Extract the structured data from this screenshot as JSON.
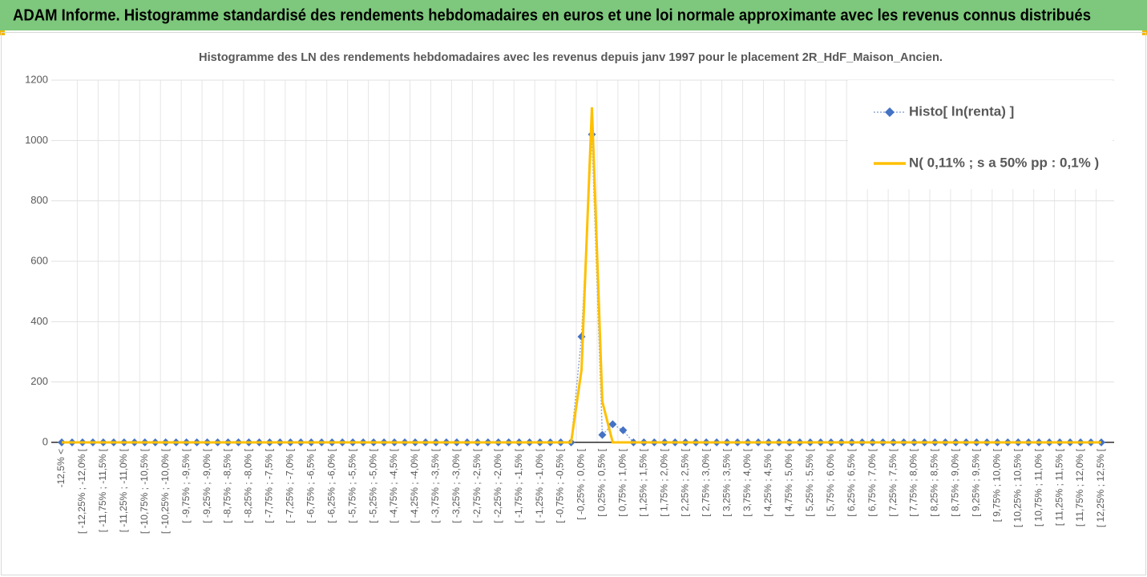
{
  "chart_data": {
    "type": "line",
    "title": "ADAM Informe. Histogramme standardisé des rendements hebdomadaires en euros et une loi normale approximante avec les revenus connus distribués",
    "subtitle": "Histogramme  des LN des rendements hebdomadaires avec les revenus depuis janv 1997 pour le placement 2R_HdF_Maison_Ancien.",
    "categories": [
      "-12,5% <",
      null,
      "[ -12,25% ; -12,0% [",
      null,
      "[ -11,75% ; -11,5% [",
      null,
      "[ -11,25% ; -11,0% [",
      null,
      "[ -10,75% ; -10,5% [",
      null,
      "[ -10,25% ; -10,0% [",
      null,
      "[ -9,75% ; -9,5% [",
      null,
      "[ -9,25% ; -9,0% [",
      null,
      "[ -8,75% ; -8,5% [",
      null,
      "[ -8,25% ; -8,0% [",
      null,
      "[ -7,75% ; -7,5% [",
      null,
      "[ -7,25% ; -7,0% [",
      null,
      "[ -6,75% ; -6,5% [",
      null,
      "[ -6,25% ; -6,0% [",
      null,
      "[ -5,75% ; -5,5% [",
      null,
      "[ -5,25% ; -5,0% [",
      null,
      "[ -4,75% ; -4,5% [",
      null,
      "[ -4,25% ; -4,0% [",
      null,
      "[ -3,75% ; -3,5% [",
      null,
      "[ -3,25% ; -3,0% [",
      null,
      "[ -2,75% ; -2,5% [",
      null,
      "[ -2,25% ; -2,0% [",
      null,
      "[ -1,75% ; -1,5% [",
      null,
      "[ -1,25% ; -1,0% [",
      null,
      "[ -0,75% ; -0,5% [",
      null,
      "[ -0,25% ; 0,0% [",
      null,
      "[ 0,25% ; 0,5% [",
      null,
      "[ 0,75% ; 1,0% [",
      null,
      "[ 1,25% ; 1,5% [",
      null,
      "[ 1,75% ; 2,0% [",
      null,
      "[ 2,25% ; 2,5% [",
      null,
      "[ 2,75% ; 3,0% [",
      null,
      "[ 3,25% ; 3,5% [",
      null,
      "[ 3,75% ; 4,0% [",
      null,
      "[ 4,25% ; 4,5% [",
      null,
      "[ 4,75% ; 5,0% [",
      null,
      "[ 5,25% ; 5,5% [",
      null,
      "[ 5,75% ; 6,0% [",
      null,
      "[ 6,25% ; 6,5% [",
      null,
      "[ 6,75% ; 7,0% [",
      null,
      "[ 7,25% ; 7,5% [",
      null,
      "[ 7,75% ; 8,0% [",
      null,
      "[ 8,25% ; 8,5% [",
      null,
      "[ 8,75% ; 9,0% [",
      null,
      "[ 9,25% ; 9,5% [",
      null,
      "[ 9,75% ; 10,0% [",
      null,
      "[ 10,25% ; 10,5% [",
      null,
      "[ 10,75% ; 11,0% [",
      null,
      "[ 11,25% ; 11,5% [",
      null,
      "[ 11,75% ; 12,0% [",
      null,
      "[ 12,25% ; 12,5% ["
    ],
    "series": [
      {
        "name": "Histo[ ln(renta) ]",
        "color": "#4472c4",
        "values": [
          0,
          0,
          0,
          0,
          0,
          0,
          0,
          0,
          0,
          0,
          0,
          0,
          0,
          0,
          0,
          0,
          0,
          0,
          0,
          0,
          0,
          0,
          0,
          0,
          0,
          0,
          0,
          0,
          0,
          0,
          0,
          0,
          0,
          0,
          0,
          0,
          0,
          0,
          0,
          0,
          0,
          0,
          0,
          0,
          0,
          0,
          0,
          0,
          0,
          0,
          350,
          1020,
          25,
          60,
          40,
          0,
          0,
          0,
          0,
          0,
          0,
          0,
          0,
          0,
          0,
          0,
          0,
          0,
          0,
          0,
          0,
          0,
          0,
          0,
          0,
          0,
          0,
          0,
          0,
          0,
          0,
          0,
          0,
          0,
          0,
          0,
          0,
          0,
          0,
          0,
          0,
          0,
          0,
          0,
          0,
          0,
          0,
          0,
          0,
          0,
          0
        ]
      },
      {
        "name": "N( 0,11% ; s a 50% pp : 0,1% )",
        "color": "#ffc000",
        "values": [
          0,
          0,
          0,
          0,
          0,
          0,
          0,
          0,
          0,
          0,
          0,
          0,
          0,
          0,
          0,
          0,
          0,
          0,
          0,
          0,
          0,
          0,
          0,
          0,
          0,
          0,
          0,
          0,
          0,
          0,
          0,
          0,
          0,
          0,
          0,
          0,
          0,
          0,
          0,
          0,
          0,
          0,
          0,
          0,
          0,
          0,
          0,
          0,
          0,
          0,
          240,
          1110,
          135,
          0,
          0,
          0,
          0,
          0,
          0,
          0,
          0,
          0,
          0,
          0,
          0,
          0,
          0,
          0,
          0,
          0,
          0,
          0,
          0,
          0,
          0,
          0,
          0,
          0,
          0,
          0,
          0,
          0,
          0,
          0,
          0,
          0,
          0,
          0,
          0,
          0,
          0,
          0,
          0,
          0,
          0,
          0,
          0,
          0,
          0,
          0,
          0
        ]
      }
    ],
    "ylim": [
      0,
      1200
    ],
    "yticks": [
      0,
      200,
      400,
      600,
      800,
      1000,
      1200
    ],
    "grid": true,
    "legend": "top-right"
  }
}
